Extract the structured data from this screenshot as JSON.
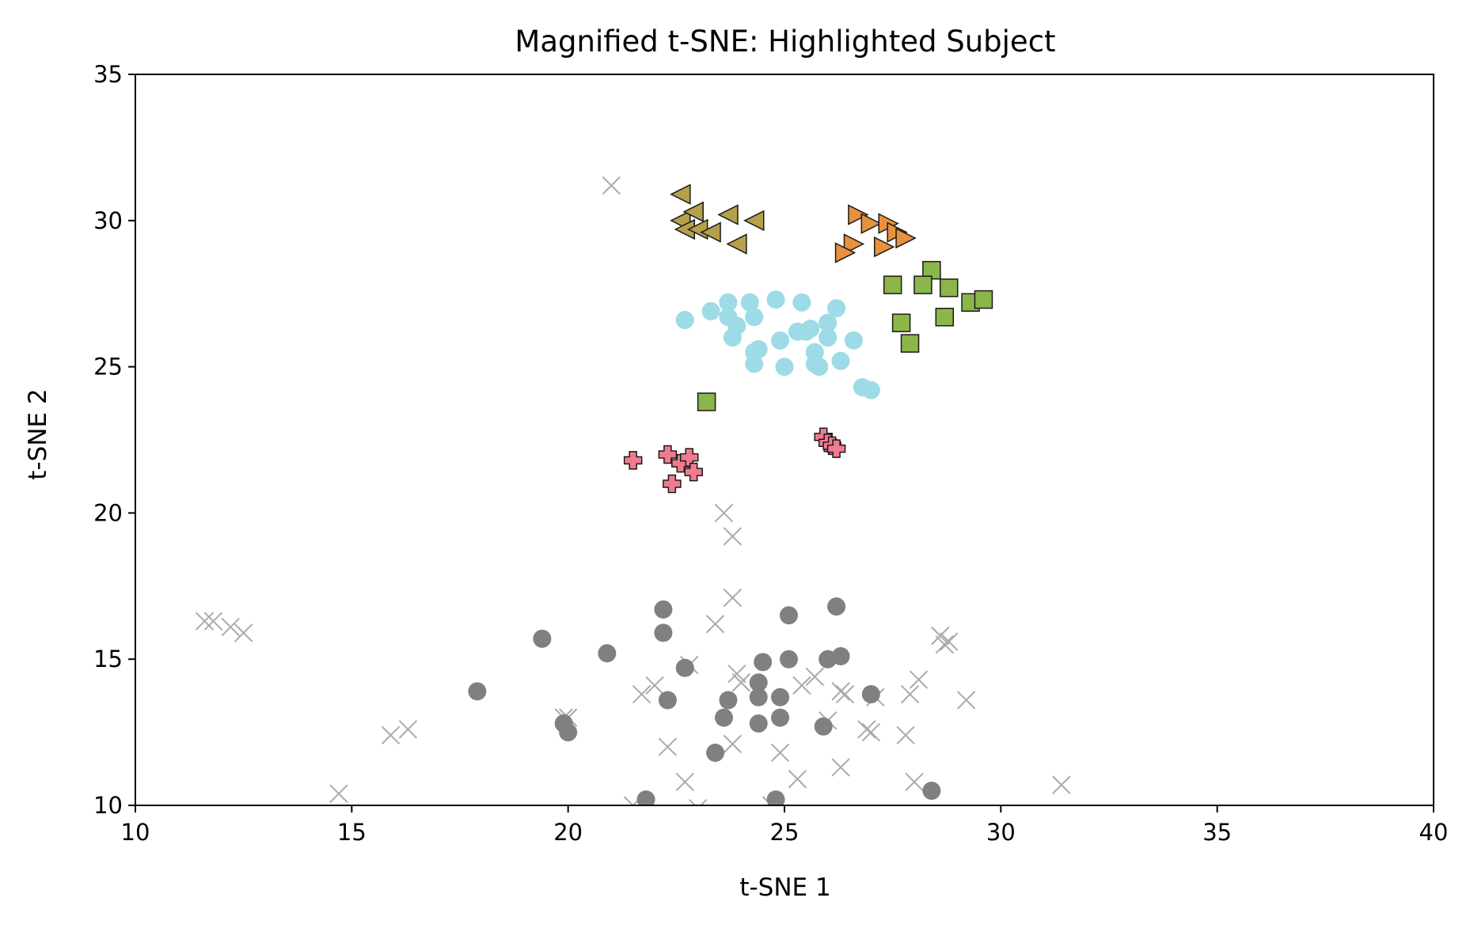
{
  "chart_data": {
    "type": "scatter",
    "title": "Magnified t-SNE: Highlighted Subject",
    "xlabel": "t-SNE 1",
    "ylabel": "t-SNE 2",
    "xlim": [
      10,
      40
    ],
    "ylim": [
      10,
      35
    ],
    "xticks": [
      "10",
      "15",
      "20",
      "25",
      "30",
      "35",
      "40"
    ],
    "yticks": [
      "10",
      "15",
      "20",
      "25",
      "30",
      "35"
    ],
    "grid": false,
    "legend": "none",
    "series": [
      {
        "marker": "x",
        "color": "#aaaaaa",
        "role": "background",
        "points": [
          [
            21.0,
            31.2
          ],
          [
            23.6,
            20.0
          ],
          [
            23.8,
            19.2
          ],
          [
            23.8,
            17.1
          ],
          [
            23.4,
            16.2
          ],
          [
            11.6,
            16.3
          ],
          [
            11.8,
            16.3
          ],
          [
            12.2,
            16.1
          ],
          [
            12.5,
            15.9
          ],
          [
            28.6,
            15.8
          ],
          [
            28.7,
            15.5
          ],
          [
            28.8,
            15.6
          ],
          [
            22.8,
            14.8
          ],
          [
            23.9,
            14.5
          ],
          [
            25.7,
            14.4
          ],
          [
            28.1,
            14.3
          ],
          [
            22.0,
            14.1
          ],
          [
            24.0,
            14.2
          ],
          [
            25.4,
            14.1
          ],
          [
            26.3,
            13.9
          ],
          [
            21.7,
            13.8
          ],
          [
            26.4,
            13.8
          ],
          [
            27.1,
            13.7
          ],
          [
            27.9,
            13.8
          ],
          [
            29.2,
            13.6
          ],
          [
            19.9,
            13.0
          ],
          [
            20.0,
            13.0
          ],
          [
            26.0,
            12.9
          ],
          [
            26.9,
            12.6
          ],
          [
            27.0,
            12.5
          ],
          [
            15.9,
            12.4
          ],
          [
            16.3,
            12.6
          ],
          [
            27.8,
            12.4
          ],
          [
            22.3,
            12.0
          ],
          [
            23.8,
            12.1
          ],
          [
            24.9,
            11.8
          ],
          [
            26.3,
            11.3
          ],
          [
            22.7,
            10.8
          ],
          [
            25.3,
            10.9
          ],
          [
            28.0,
            10.8
          ],
          [
            31.4,
            10.7
          ],
          [
            14.7,
            10.4
          ],
          [
            21.5,
            10.0
          ],
          [
            23.0,
            9.9
          ],
          [
            24.7,
            10.0
          ]
        ]
      },
      {
        "marker": "circle",
        "color": "#808080",
        "role": "other",
        "points": [
          [
            22.2,
            16.7
          ],
          [
            26.2,
            16.8
          ],
          [
            22.2,
            15.9
          ],
          [
            25.1,
            16.5
          ],
          [
            19.4,
            15.7
          ],
          [
            20.9,
            15.2
          ],
          [
            25.1,
            15.0
          ],
          [
            26.0,
            15.0
          ],
          [
            26.3,
            15.1
          ],
          [
            24.5,
            14.9
          ],
          [
            22.7,
            14.7
          ],
          [
            17.9,
            13.9
          ],
          [
            24.4,
            14.2
          ],
          [
            22.3,
            13.6
          ],
          [
            23.7,
            13.6
          ],
          [
            24.4,
            13.7
          ],
          [
            24.9,
            13.7
          ],
          [
            27.0,
            13.8
          ],
          [
            19.9,
            12.8
          ],
          [
            20.0,
            12.5
          ],
          [
            23.6,
            13.0
          ],
          [
            24.9,
            13.0
          ],
          [
            24.4,
            12.8
          ],
          [
            25.9,
            12.7
          ],
          [
            23.4,
            11.8
          ],
          [
            21.8,
            10.2
          ],
          [
            24.8,
            10.2
          ],
          [
            28.4,
            10.5
          ]
        ]
      },
      {
        "marker": "triangle-left",
        "color": "#b5a14a",
        "points": [
          [
            22.6,
            30.9
          ],
          [
            22.6,
            30.0
          ],
          [
            22.9,
            30.3
          ],
          [
            23.7,
            30.2
          ],
          [
            24.3,
            30.0
          ],
          [
            22.7,
            29.7
          ],
          [
            23.0,
            29.7
          ],
          [
            23.3,
            29.6
          ],
          [
            23.9,
            29.2
          ]
        ]
      },
      {
        "marker": "triangle-right",
        "color": "#e8913f",
        "points": [
          [
            26.7,
            30.2
          ],
          [
            27.0,
            29.9
          ],
          [
            27.4,
            29.9
          ],
          [
            27.6,
            29.6
          ],
          [
            27.8,
            29.4
          ],
          [
            27.3,
            29.1
          ],
          [
            26.6,
            29.2
          ],
          [
            26.4,
            28.9
          ]
        ]
      },
      {
        "marker": "square",
        "color": "#8bb64a",
        "points": [
          [
            28.4,
            28.3
          ],
          [
            27.5,
            27.8
          ],
          [
            28.2,
            27.8
          ],
          [
            28.8,
            27.7
          ],
          [
            29.3,
            27.2
          ],
          [
            29.6,
            27.3
          ],
          [
            27.7,
            26.5
          ],
          [
            28.7,
            26.7
          ],
          [
            27.9,
            25.8
          ],
          [
            23.2,
            23.8
          ]
        ]
      },
      {
        "marker": "circle",
        "color": "#9ddbe6",
        "points": [
          [
            24.8,
            27.3
          ],
          [
            25.4,
            27.2
          ],
          [
            23.7,
            27.2
          ],
          [
            24.2,
            27.2
          ],
          [
            26.2,
            27.0
          ],
          [
            23.3,
            26.9
          ],
          [
            23.7,
            26.7
          ],
          [
            24.3,
            26.7
          ],
          [
            22.7,
            26.6
          ],
          [
            26.0,
            26.5
          ],
          [
            23.9,
            26.4
          ],
          [
            25.6,
            26.3
          ],
          [
            25.3,
            26.2
          ],
          [
            25.5,
            26.2
          ],
          [
            23.8,
            26.0
          ],
          [
            24.9,
            25.9
          ],
          [
            26.0,
            26.0
          ],
          [
            26.6,
            25.9
          ],
          [
            24.4,
            25.6
          ],
          [
            24.3,
            25.5
          ],
          [
            25.7,
            25.5
          ],
          [
            24.3,
            25.1
          ],
          [
            25.0,
            25.0
          ],
          [
            25.7,
            25.1
          ],
          [
            25.8,
            25.0
          ],
          [
            26.3,
            25.2
          ],
          [
            26.8,
            24.3
          ],
          [
            27.0,
            24.2
          ]
        ]
      },
      {
        "marker": "plus",
        "color": "#f07b8e",
        "points": [
          [
            21.5,
            21.8
          ],
          [
            22.3,
            22.0
          ],
          [
            22.6,
            21.7
          ],
          [
            22.8,
            21.9
          ],
          [
            22.9,
            21.4
          ],
          [
            22.4,
            21.0
          ],
          [
            25.9,
            22.6
          ],
          [
            26.0,
            22.4
          ],
          [
            26.1,
            22.3
          ],
          [
            26.2,
            22.2
          ]
        ]
      }
    ]
  }
}
